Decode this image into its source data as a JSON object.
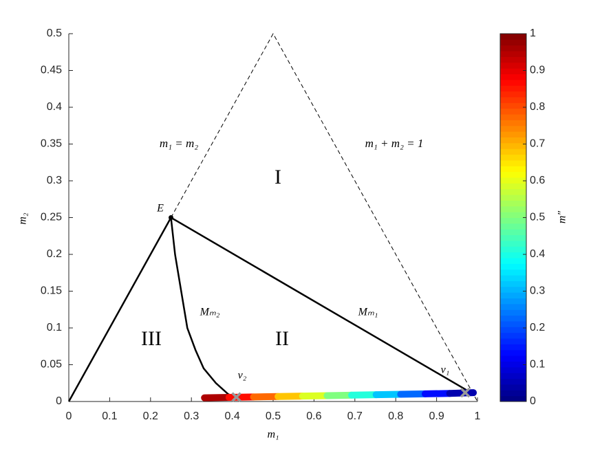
{
  "chart_data": {
    "type": "line",
    "xlabel": "m₁",
    "ylabel": "m₂",
    "xlim": [
      0,
      1
    ],
    "ylim": [
      0,
      0.5
    ],
    "xticks": [
      0,
      0.1,
      0.2,
      0.3,
      0.4,
      0.5,
      0.6,
      0.7,
      0.8,
      0.9,
      1
    ],
    "yticks": [
      0,
      0.05,
      0.1,
      0.15,
      0.2,
      0.25,
      0.3,
      0.35,
      0.4,
      0.45,
      0.5
    ],
    "lines": [
      {
        "x": [
          0.25,
          0.5,
          1
        ],
        "y": [
          0.25,
          0.5,
          0
        ],
        "style": "dashed",
        "color": "#000000"
      },
      {
        "x": [
          0,
          0.25,
          0.981
        ],
        "y": [
          0,
          0.25,
          0.013
        ],
        "style": "solid",
        "color": "#000000"
      },
      {
        "x": [
          0.25,
          0.26,
          0.275,
          0.29,
          0.31,
          0.33,
          0.36,
          0.39,
          0.41
        ],
        "y": [
          0.25,
          0.2,
          0.15,
          0.1,
          0.07,
          0.045,
          0.025,
          0.01,
          0.005
        ],
        "style": "solid",
        "color": "#000000"
      }
    ],
    "gradient": {
      "x": [
        0.332,
        0.392,
        0.452,
        0.512,
        0.572,
        0.632,
        0.692,
        0.752,
        0.812,
        0.872,
        0.932,
        0.99
      ],
      "y": [
        0.005,
        0.0056,
        0.0062,
        0.0068,
        0.0074,
        0.008,
        0.0086,
        0.0092,
        0.0098,
        0.0104,
        0.011,
        0.012
      ],
      "c": [
        1,
        0.909,
        0.818,
        0.727,
        0.636,
        0.545,
        0.455,
        0.364,
        0.273,
        0.182,
        0.091,
        0
      ]
    },
    "points": [
      {
        "x": 0.25,
        "y": 0.25,
        "marker": "dot",
        "color": "#000000"
      },
      {
        "x": 0.41,
        "y": 0.006,
        "marker": "x",
        "color": "#999999"
      },
      {
        "x": 0.97,
        "y": 0.012,
        "marker": "x",
        "color": "#999999"
      }
    ],
    "annotations": [
      "m₁ = m₂",
      "m₁ + m₂ = 1",
      "I",
      "II",
      "III",
      "E",
      "Mₘ₂",
      "Mₘ₁",
      "ν₂",
      "ν₁"
    ],
    "colorbar": {
      "label": "m″",
      "lim": [
        0,
        1
      ],
      "ticks": [
        0,
        0.1,
        0.2,
        0.3,
        0.4,
        0.5,
        0.6,
        0.7,
        0.8,
        0.9,
        1
      ],
      "colormap": "jet"
    }
  }
}
